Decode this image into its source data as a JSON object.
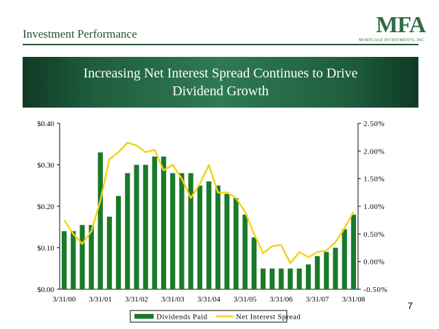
{
  "header": {
    "section_title": "Investment Performance"
  },
  "logo": {
    "mark": "MFA",
    "subtitle": "MORTGAGE INVESTMENTS, INC."
  },
  "banner": {
    "title": "Increasing Net Interest Spread Continues to Drive Dividend Growth"
  },
  "page_number": "7",
  "colors": {
    "bar": "#1a7a2a",
    "line": "#f2d316",
    "text": "#000000",
    "brand": "#1d5131"
  },
  "chart_data": {
    "type": "bar",
    "x_tick_labels": [
      "3/31/00",
      "3/31/01",
      "3/31/02",
      "3/31/03",
      "3/31/04",
      "3/31/05",
      "3/31/06",
      "3/31/07",
      "3/31/08"
    ],
    "left_axis": {
      "ylim": [
        0,
        0.4
      ],
      "ticks": [
        "$0.00",
        "$0.10",
        "$0.20",
        "$0.30",
        "$0.40"
      ]
    },
    "right_axis": {
      "ylim": [
        -0.5,
        2.5
      ],
      "ticks": [
        "-0.50%",
        "0.00%",
        "0.50%",
        "1.00%",
        "1.50%",
        "2.00%",
        "2.50%"
      ]
    },
    "series": [
      {
        "name": "Dividends Paid",
        "type": "bar",
        "axis": "left",
        "values": [
          0.14,
          0.14,
          0.155,
          0.155,
          0.33,
          0.175,
          0.225,
          0.28,
          0.3,
          0.3,
          0.32,
          0.32,
          0.28,
          0.28,
          0.28,
          0.25,
          0.26,
          0.25,
          0.23,
          0.22,
          0.18,
          0.125,
          0.05,
          0.05,
          0.05,
          0.05,
          0.05,
          0.06,
          0.08,
          0.09,
          0.1,
          0.145,
          0.18
        ]
      },
      {
        "name": "Net Interest Spread",
        "type": "line",
        "axis": "right",
        "values": [
          0.75,
          0.5,
          0.32,
          0.55,
          1.1,
          1.85,
          1.98,
          2.15,
          2.1,
          1.98,
          2.02,
          1.65,
          1.75,
          1.5,
          1.15,
          1.4,
          1.75,
          1.25,
          1.25,
          1.15,
          0.9,
          0.5,
          0.15,
          0.28,
          0.3,
          -0.03,
          0.17,
          0.08,
          0.17,
          0.2,
          0.35,
          0.6,
          0.9
        ]
      }
    ],
    "legend_placement": "bottom-center",
    "grid": false
  }
}
